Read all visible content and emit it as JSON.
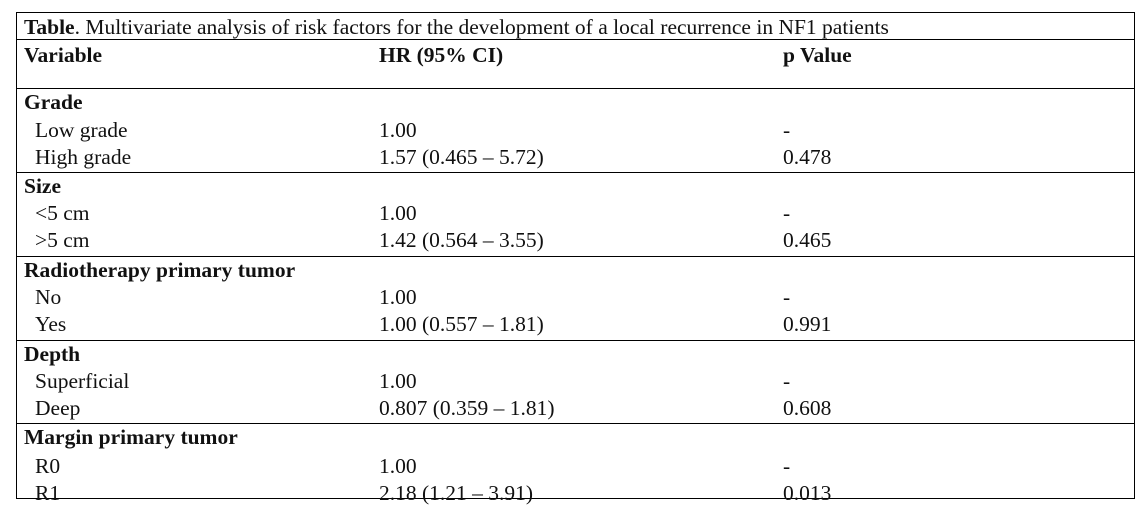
{
  "caption": {
    "label": "Table",
    "text": ". Multivariate analysis of risk factors for the development of a local recurrence in NF1 patients"
  },
  "header": {
    "variable": "Variable",
    "hr": "HR (95% CI)",
    "p": "p Value"
  },
  "sections": [
    {
      "title": "Grade",
      "rows": [
        {
          "label": "Low grade",
          "hr": "1.00",
          "p": "-"
        },
        {
          "label": "High grade",
          "hr": "1.57 (0.465 – 5.72)",
          "p": "0.478"
        }
      ]
    },
    {
      "title": "Size",
      "rows": [
        {
          "label": "<5 cm",
          "hr": "1.00",
          "p": "-"
        },
        {
          "label": ">5 cm",
          "hr": "1.42 (0.564 – 3.55)",
          "p": "0.465"
        }
      ]
    },
    {
      "title": "Radiotherapy primary tumor",
      "rows": [
        {
          "label": "No",
          "hr": "1.00",
          "p": "-"
        },
        {
          "label": "Yes",
          "hr": "1.00 (0.557 – 1.81)",
          "p": "0.991"
        }
      ]
    },
    {
      "title": "Depth",
      "rows": [
        {
          "label": "Superficial",
          "hr": "1.00",
          "p": "-"
        },
        {
          "label": "Deep",
          "hr": "0.807 (0.359 – 1.81)",
          "p": "0.608"
        }
      ]
    },
    {
      "title": "Margin primary tumor",
      "rows": [
        {
          "label": "R0",
          "hr": "1.00",
          "p": "-"
        },
        {
          "label": "R1",
          "hr": "2.18 (1.21 – 3.91)",
          "p": "0.013"
        }
      ]
    }
  ]
}
